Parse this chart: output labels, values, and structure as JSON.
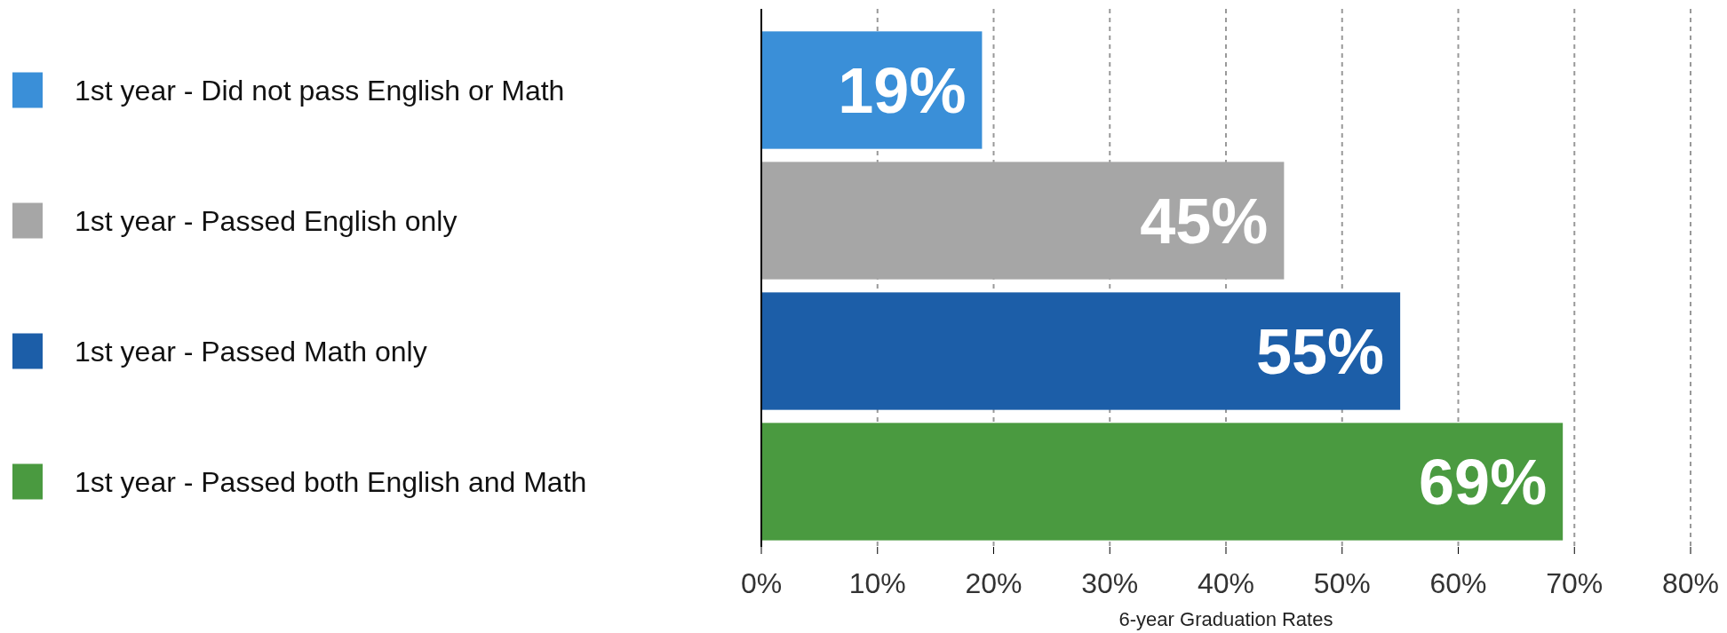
{
  "chart_data": {
    "type": "bar",
    "orientation": "horizontal",
    "categories": [
      null,
      null,
      null,
      null
    ],
    "series": [
      {
        "name": "1st year - Did not pass English or Math",
        "color": "#3a8fd8",
        "values": [
          19,
          null,
          null,
          null
        ],
        "value_labels": [
          "19%",
          null,
          null,
          null
        ]
      },
      {
        "name": "1st year - Passed English only",
        "color": "#a6a6a6",
        "values": [
          null,
          45,
          null,
          null
        ],
        "value_labels": [
          null,
          "45%",
          null,
          null
        ]
      },
      {
        "name": "1st year - Passed Math only",
        "color": "#1c5ea8",
        "values": [
          null,
          null,
          55,
          null
        ],
        "value_labels": [
          null,
          null,
          "55%",
          null
        ]
      },
      {
        "name": "1st year - Passed both English and Math",
        "color": "#4a9a40",
        "values": [
          null,
          null,
          null,
          69
        ],
        "value_labels": [
          null,
          null,
          null,
          "69%"
        ]
      }
    ],
    "xlim": [
      0,
      80
    ],
    "xticks": [
      {
        "value": 0,
        "label": "0%"
      },
      {
        "value": 10,
        "label": "10%"
      },
      {
        "value": 20,
        "label": "20%"
      },
      {
        "value": 30,
        "label": "30%"
      },
      {
        "value": 40,
        "label": "40%"
      },
      {
        "value": 50,
        "label": "50%"
      },
      {
        "value": 60,
        "label": "60%"
      },
      {
        "value": 70,
        "label": "70%"
      },
      {
        "value": 80,
        "label": "80%"
      }
    ],
    "xlabel": "6-year Graduation Rates",
    "grid": "x",
    "legend": "left"
  }
}
